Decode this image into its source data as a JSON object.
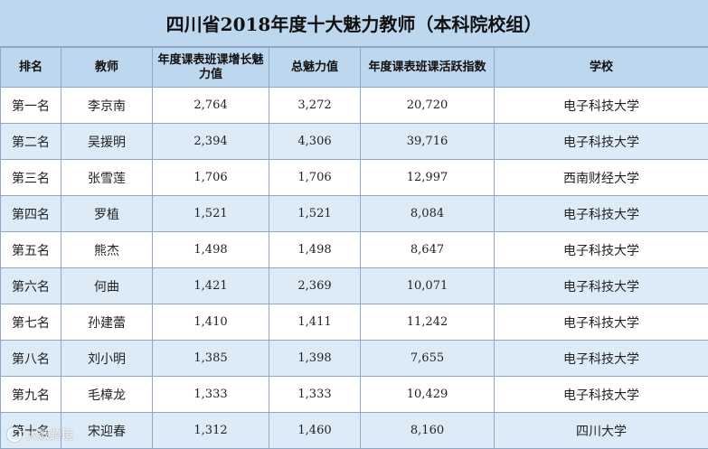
{
  "title": "四川省2018年度十大魅力教师（本科院校组）",
  "headers": [
    "排名",
    "教师",
    "年度课表班课增长魅力值",
    "总魅力值",
    "年度课表班课活跃指数",
    "学校"
  ],
  "rows": [
    {
      "rank": "第一名",
      "teacher": "李京南",
      "growth": "2,764",
      "total": "3,272",
      "activity": "20,720",
      "school": "电子科技大学"
    },
    {
      "rank": "第二名",
      "teacher": "吴援明",
      "growth": "2,394",
      "total": "4,306",
      "activity": "39,716",
      "school": "电子科技大学"
    },
    {
      "rank": "第三名",
      "teacher": "张雪莲",
      "growth": "1,706",
      "total": "1,706",
      "activity": "12,997",
      "school": "西南财经大学"
    },
    {
      "rank": "第四名",
      "teacher": "罗植",
      "growth": "1,521",
      "total": "1,521",
      "activity": "8,084",
      "school": "电子科技大学"
    },
    {
      "rank": "第五名",
      "teacher": "熊杰",
      "growth": "1,498",
      "total": "1,498",
      "activity": "8,647",
      "school": "电子科技大学"
    },
    {
      "rank": "第六名",
      "teacher": "何曲",
      "growth": "1,421",
      "total": "2,369",
      "activity": "10,071",
      "school": "电子科技大学"
    },
    {
      "rank": "第七名",
      "teacher": "孙建蕾",
      "growth": "1,410",
      "total": "1,411",
      "activity": "11,242",
      "school": "电子科技大学"
    },
    {
      "rank": "第八名",
      "teacher": "刘小明",
      "growth": "1,385",
      "total": "1,398",
      "activity": "7,655",
      "school": "电子科技大学"
    },
    {
      "rank": "第九名",
      "teacher": "毛樟龙",
      "growth": "1,333",
      "total": "1,333",
      "activity": "10,429",
      "school": "电子科技大学"
    },
    {
      "rank": "第十名",
      "teacher": "宋迎春",
      "growth": "1,312",
      "total": "1,460",
      "activity": "8,160",
      "school": "四川大学"
    }
  ],
  "watermark": "大数跨境",
  "colors": {
    "header_bg": "#bdd7ee",
    "zebra_bg": "#ddebf7",
    "border": "#8ea9c8"
  }
}
